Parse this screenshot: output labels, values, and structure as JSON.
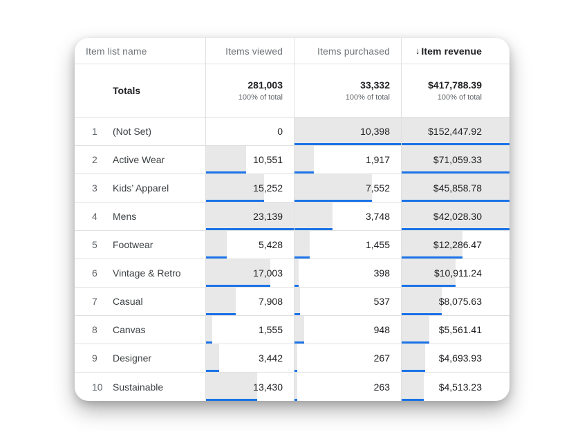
{
  "colors": {
    "accent_blue": "#1a73e8",
    "bar_gray": "#e8e8e8",
    "rule_gray": "#e0e0e0"
  },
  "sort": {
    "column": "Item revenue",
    "direction": "descending",
    "icon": "down-arrow"
  },
  "header": {
    "columns": [
      {
        "label": "Item list name",
        "sorted": false
      },
      {
        "label": "Items viewed",
        "sorted": false
      },
      {
        "label": "Items purchased",
        "sorted": false
      },
      {
        "label": "Item revenue",
        "sorted": true
      }
    ]
  },
  "totals": {
    "label": "Totals",
    "viewed": "281,003",
    "purchased": "33,332",
    "revenue": "$417,788.39",
    "subtext": "100% of total"
  },
  "rows": [
    {
      "rank": "1",
      "name": "(Not Set)",
      "viewed": "0",
      "purchased": "10,398",
      "revenue": "$152,447.92",
      "bars": {
        "viewed": 0,
        "purchased": 100,
        "revenue": 100
      }
    },
    {
      "rank": "2",
      "name": "Active Wear",
      "viewed": "10,551",
      "purchased": "1,917",
      "revenue": "$71,059.33",
      "bars": {
        "viewed": 45.6,
        "purchased": 18.4,
        "revenue": 100
      }
    },
    {
      "rank": "3",
      "name": "Kids’ Apparel",
      "viewed": "15,252",
      "purchased": "7,552",
      "revenue": "$45,858.78",
      "bars": {
        "viewed": 65.9,
        "purchased": 72.6,
        "revenue": 100
      }
    },
    {
      "rank": "4",
      "name": "Mens",
      "viewed": "23,139",
      "purchased": "3,748",
      "revenue": "$42,028.30",
      "bars": {
        "viewed": 100,
        "purchased": 36.0,
        "revenue": 100
      }
    },
    {
      "rank": "5",
      "name": "Footwear",
      "viewed": "5,428",
      "purchased": "1,455",
      "revenue": "$12,286.47",
      "bars": {
        "viewed": 23.5,
        "purchased": 14.0,
        "revenue": 56.6
      }
    },
    {
      "rank": "6",
      "name": "Vintage & Retro",
      "viewed": "17,003",
      "purchased": "398",
      "revenue": "$10,911.24",
      "bars": {
        "viewed": 73.5,
        "purchased": 3.8,
        "revenue": 50.2
      }
    },
    {
      "rank": "7",
      "name": "Casual",
      "viewed": "7,908",
      "purchased": "537",
      "revenue": "$8,075.63",
      "bars": {
        "viewed": 34.2,
        "purchased": 5.2,
        "revenue": 37.2
      }
    },
    {
      "rank": "8",
      "name": "Canvas",
      "viewed": "1,555",
      "purchased": "948",
      "revenue": "$5,561.41",
      "bars": {
        "viewed": 6.7,
        "purchased": 9.1,
        "revenue": 25.6
      }
    },
    {
      "rank": "9",
      "name": "Designer",
      "viewed": "3,442",
      "purchased": "267",
      "revenue": "$4,693.93",
      "bars": {
        "viewed": 14.9,
        "purchased": 2.6,
        "revenue": 21.6
      }
    },
    {
      "rank": "10",
      "name": "Sustainable",
      "viewed": "13,430",
      "purchased": "263",
      "revenue": "$4,513.23",
      "bars": {
        "viewed": 58.0,
        "purchased": 2.5,
        "revenue": 20.8
      }
    }
  ]
}
